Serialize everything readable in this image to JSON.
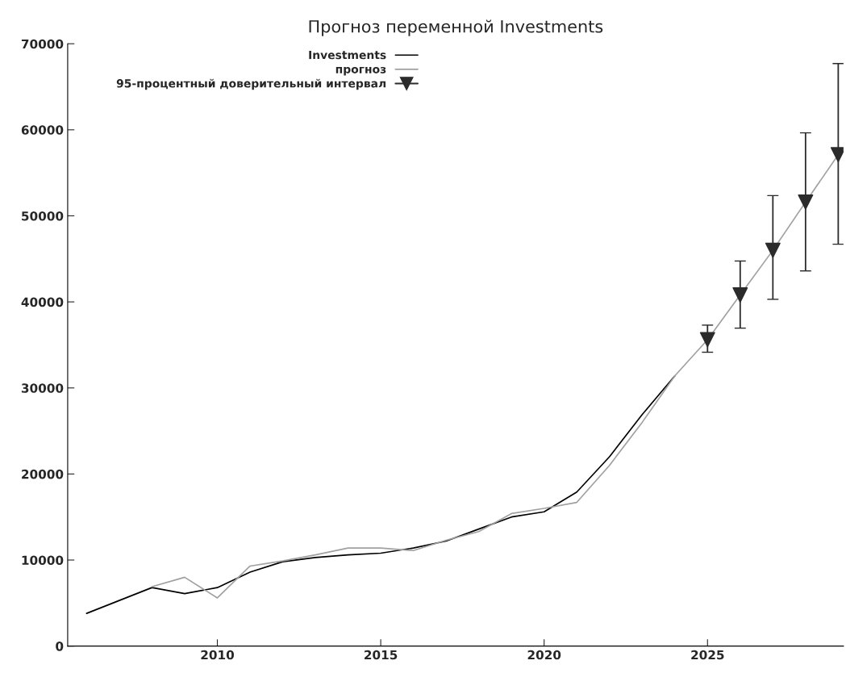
{
  "chart_data": {
    "type": "line",
    "title": "Прогноз переменной Investments",
    "xlim": [
      2005.42,
      2029.16
    ],
    "xticks": [
      2010,
      2015,
      2020,
      2025
    ],
    "ylim": [
      0,
      70000
    ],
    "yticks": [
      0,
      10000,
      20000,
      30000,
      40000,
      50000,
      60000,
      70000
    ],
    "grid": false,
    "legend": "top left",
    "marker": "none",
    "line_style": "solid",
    "series": [
      {
        "name": "Investments",
        "color": "#000000",
        "x": [
          2006,
          2007,
          2008,
          2009,
          2010,
          2011,
          2012,
          2013,
          2014,
          2015,
          2016,
          2017,
          2018,
          2019,
          2020,
          2021,
          2022,
          2023,
          2024
        ],
        "values": [
          3800,
          5300,
          6800,
          6100,
          6800,
          8600,
          9800,
          10300,
          10600,
          10800,
          11400,
          12200,
          13600,
          15000,
          15600,
          17900,
          22000,
          26900,
          31400
        ]
      },
      {
        "name": "прогноз",
        "type": "line",
        "color": "#a0a0a0",
        "x": [
          2008,
          2009,
          2010,
          2011,
          2012,
          2013,
          2014,
          2015,
          2016,
          2017,
          2018,
          2019,
          2020,
          2021,
          2022,
          2023,
          2024,
          2025,
          2026,
          2027,
          2028,
          2029
        ],
        "values": [
          6900,
          8000,
          5600,
          9300,
          9900,
          10600,
          11400,
          11400,
          11100,
          12300,
          13300,
          15400,
          16000,
          16700,
          21000,
          26000,
          31400,
          35600,
          40800,
          46000,
          51600,
          57100
        ]
      },
      {
        "name": "95-процентный доверительный интервал",
        "type": "scatter",
        "marker": "triangle",
        "color": "#2b2b2b",
        "x": [
          2025,
          2026,
          2027,
          2028,
          2029
        ],
        "values": [
          35600,
          40800,
          46000,
          51600,
          57100
        ],
        "errors": [
          [
            34150,
            37300
          ],
          [
            36950,
            44750
          ],
          [
            40300,
            52350
          ],
          [
            43600,
            59650
          ],
          [
            46700,
            67700
          ]
        ]
      }
    ]
  }
}
